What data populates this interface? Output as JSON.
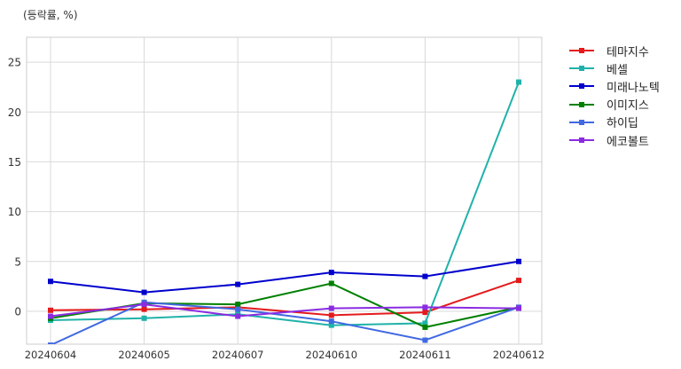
{
  "chart_data": {
    "type": "line",
    "ylabel": "(등락률, %)",
    "xlabel": "",
    "categories": [
      "20240604",
      "20240605",
      "20240607",
      "20240610",
      "20240611",
      "20240612"
    ],
    "yticks": [
      0,
      5,
      10,
      15,
      20,
      25
    ],
    "ylim": [
      -3.3,
      27.5
    ],
    "grid": true,
    "legend_position": "outside-right",
    "series": [
      {
        "name": "테마지수",
        "color": "#e41a1c",
        "values": [
          0.1,
          0.2,
          0.4,
          -0.4,
          -0.1,
          3.1
        ]
      },
      {
        "name": "베셀",
        "color": "#20b2aa",
        "values": [
          -0.9,
          -0.7,
          -0.3,
          -1.4,
          -1.2,
          23.0
        ]
      },
      {
        "name": "미래나노텍",
        "color": "#0000cd",
        "values": [
          3.0,
          1.9,
          2.7,
          3.9,
          3.5,
          5.0
        ]
      },
      {
        "name": "이미지스",
        "color": "#008000",
        "values": [
          -0.7,
          0.8,
          0.7,
          2.8,
          -1.6,
          0.4
        ]
      },
      {
        "name": "하이딥",
        "color": "#4169e1",
        "values": [
          -3.4,
          0.9,
          0.2,
          -1.0,
          -2.9,
          0.4
        ]
      },
      {
        "name": "에코볼트",
        "color": "#8a2be2",
        "values": [
          -0.5,
          0.7,
          -0.5,
          0.3,
          0.4,
          0.3
        ]
      }
    ]
  }
}
